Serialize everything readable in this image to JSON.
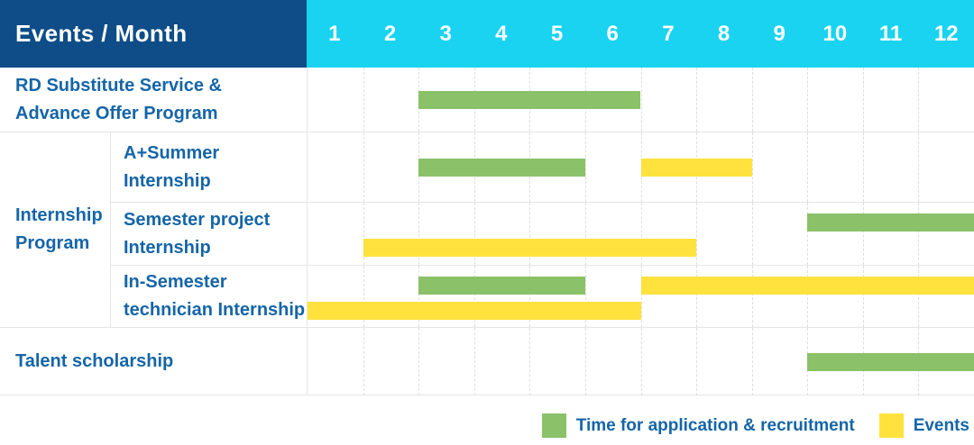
{
  "header": {
    "title": "Events / Month",
    "months": [
      "1",
      "2",
      "3",
      "4",
      "5",
      "6",
      "7",
      "8",
      "9",
      "10",
      "11",
      "12"
    ]
  },
  "legend": {
    "items": [
      {
        "label": "Time for application & recruitment",
        "series": "application",
        "color": "#8bc168"
      },
      {
        "label": "Events",
        "series": "event",
        "color": "#ffe23e"
      }
    ]
  },
  "colors": {
    "header_bg": "#0e4d87",
    "months_bg": "#19d3f0",
    "application_green": "#8bc168",
    "event_yellow": "#ffe23e",
    "label_text_blue": "#1565a8",
    "grid_line": "#e6e6e6"
  },
  "chart_data": {
    "type": "bar",
    "subtype": "gantt",
    "title": "Events / Month",
    "x": {
      "label": "Month",
      "ticks": [
        1,
        2,
        3,
        4,
        5,
        6,
        7,
        8,
        9,
        10,
        11,
        12
      ],
      "range": [
        1,
        12
      ]
    },
    "legend_position": "bottom-right",
    "grid": "dashed-vertical-month-lines",
    "series_legend": [
      {
        "name": "application",
        "label": "Time for application & recruitment",
        "color": "#8bc168"
      },
      {
        "name": "event",
        "label": "Events",
        "color": "#ffe23e"
      }
    ],
    "groups": [
      {
        "label": "Internship Program",
        "label_lines": [
          "Internship",
          "Program"
        ],
        "row_indexes": [
          1,
          2,
          3
        ]
      }
    ],
    "rows": [
      {
        "group": "",
        "label": "RD Substitute Service & Advance Offer Program",
        "label_lines": [
          "RD Substitute Service &",
          "Advance Offer Program"
        ],
        "bars": [
          {
            "series": "application",
            "start_month": 3,
            "end_month": 6,
            "line": "center"
          }
        ]
      },
      {
        "group": "Internship Program",
        "label": "A+Summer Internship",
        "label_lines": [
          "A+Summer",
          "Internship"
        ],
        "bars": [
          {
            "series": "application",
            "start_month": 3,
            "end_month": 5,
            "line": "center"
          },
          {
            "series": "event",
            "start_month": 7,
            "end_month": 8,
            "line": "center"
          }
        ]
      },
      {
        "group": "Internship Program",
        "label": "Semester project Internship",
        "label_lines": [
          "Semester project",
          "Internship"
        ],
        "bars": [
          {
            "series": "application",
            "start_month": 10,
            "end_month": 12,
            "line": "1"
          },
          {
            "series": "event",
            "start_month": 2,
            "end_month": 7,
            "line": "2"
          }
        ]
      },
      {
        "group": "Internship Program",
        "label": "In-Semester technician Internship",
        "label_lines": [
          "In-Semester",
          "technician Internship"
        ],
        "bars": [
          {
            "series": "application",
            "start_month": 3,
            "end_month": 5,
            "line": "1"
          },
          {
            "series": "event",
            "start_month": 7,
            "end_month": 12,
            "line": "1"
          },
          {
            "series": "event",
            "start_month": 1,
            "end_month": 6,
            "line": "2"
          }
        ]
      },
      {
        "group": "",
        "label": "Talent scholarship",
        "label_lines": [
          "Talent scholarship"
        ],
        "bars": [
          {
            "series": "application",
            "start_month": 10,
            "end_month": 12,
            "line": "center"
          }
        ]
      }
    ]
  }
}
